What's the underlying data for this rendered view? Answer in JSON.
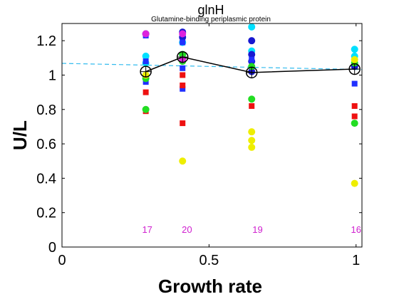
{
  "chart_data": {
    "type": "scatter",
    "title": "glnH",
    "subtitle": "Glutamine-binding periplasmic protein",
    "xlabel": "Growth rate",
    "ylabel": "U/L",
    "xlim": [
      0,
      1.02
    ],
    "ylim": [
      0,
      1.3
    ],
    "xticks": [
      {
        "value": 0,
        "label": "0"
      },
      {
        "value": 0.5,
        "label": "0.5"
      },
      {
        "value": 1,
        "label": "1"
      }
    ],
    "yticks": [
      {
        "value": 0,
        "label": "0"
      },
      {
        "value": 0.2,
        "label": "0.2"
      },
      {
        "value": 0.4,
        "label": "0.4"
      },
      {
        "value": 0.6,
        "label": "0.6"
      },
      {
        "value": 0.8,
        "label": "0.8"
      },
      {
        "value": 1,
        "label": "1"
      },
      {
        "value": 1.2,
        "label": "1.2"
      }
    ],
    "grid": false,
    "mean_line": {
      "color": "#000000",
      "points": [
        {
          "x": 0.285,
          "y": 1.02
        },
        {
          "x": 0.41,
          "y": 1.105
        },
        {
          "x": 0.645,
          "y": 1.015
        },
        {
          "x": 0.995,
          "y": 1.035
        }
      ]
    },
    "fit_line": {
      "color": "#33bbee",
      "x": [
        0,
        1.02
      ],
      "y": [
        1.068,
        1.032
      ]
    },
    "counts": [
      {
        "x": 0.29,
        "y": 0.1,
        "label": "17"
      },
      {
        "x": 0.425,
        "y": 0.1,
        "label": "20"
      },
      {
        "x": 0.665,
        "y": 0.1,
        "label": "19"
      },
      {
        "x": 1.0,
        "y": 0.1,
        "label": "16"
      }
    ],
    "series": [
      {
        "color": "#00e0ff",
        "marker": "circle",
        "points": [
          [
            0.285,
            1.11
          ],
          [
            0.285,
            1.07
          ],
          [
            0.41,
            1.19
          ],
          [
            0.41,
            1.12
          ],
          [
            0.645,
            1.28
          ],
          [
            0.645,
            1.14
          ],
          [
            0.995,
            1.15
          ],
          [
            0.995,
            1.11
          ]
        ]
      },
      {
        "color": "#1818d0",
        "marker": "circle",
        "points": [
          [
            0.285,
            1.24
          ],
          [
            0.41,
            1.25
          ],
          [
            0.41,
            1.22
          ],
          [
            0.645,
            1.2
          ],
          [
            0.645,
            1.12
          ],
          [
            0.645,
            1.08
          ],
          [
            0.645,
            1.02
          ],
          [
            0.995,
            1.05
          ]
        ]
      },
      {
        "color": "#2030ff",
        "marker": "square",
        "points": [
          [
            0.285,
            1.23
          ],
          [
            0.285,
            1.08
          ],
          [
            0.285,
            0.96
          ],
          [
            0.41,
            1.19
          ],
          [
            0.41,
            1.04
          ],
          [
            0.41,
            0.92
          ],
          [
            0.645,
            1.09
          ],
          [
            0.995,
            0.95
          ]
        ]
      },
      {
        "color": "#ee1111",
        "marker": "square",
        "points": [
          [
            0.285,
            0.9
          ],
          [
            0.285,
            0.79
          ],
          [
            0.41,
            1.0
          ],
          [
            0.41,
            0.94
          ],
          [
            0.41,
            0.72
          ],
          [
            0.645,
            0.82
          ],
          [
            0.995,
            0.82
          ],
          [
            0.995,
            0.76
          ]
        ]
      },
      {
        "color": "#22dd22",
        "marker": "circle",
        "points": [
          [
            0.285,
            0.98
          ],
          [
            0.285,
            0.8
          ],
          [
            0.41,
            1.12
          ],
          [
            0.41,
            1.08
          ],
          [
            0.645,
            1.05
          ],
          [
            0.645,
            0.86
          ],
          [
            0.995,
            1.07
          ],
          [
            0.995,
            0.72
          ]
        ]
      },
      {
        "color": "#eeee00",
        "marker": "circle",
        "points": [
          [
            0.285,
            1.0
          ],
          [
            0.41,
            0.5
          ],
          [
            0.645,
            0.67
          ],
          [
            0.645,
            0.62
          ],
          [
            0.645,
            0.58
          ],
          [
            0.995,
            1.09
          ],
          [
            0.995,
            0.37
          ]
        ]
      },
      {
        "color": "#dd22dd",
        "marker": "circle",
        "points": [
          [
            0.285,
            1.24
          ],
          [
            0.41,
            1.24
          ],
          [
            0.41,
            1.09
          ]
        ]
      }
    ]
  }
}
